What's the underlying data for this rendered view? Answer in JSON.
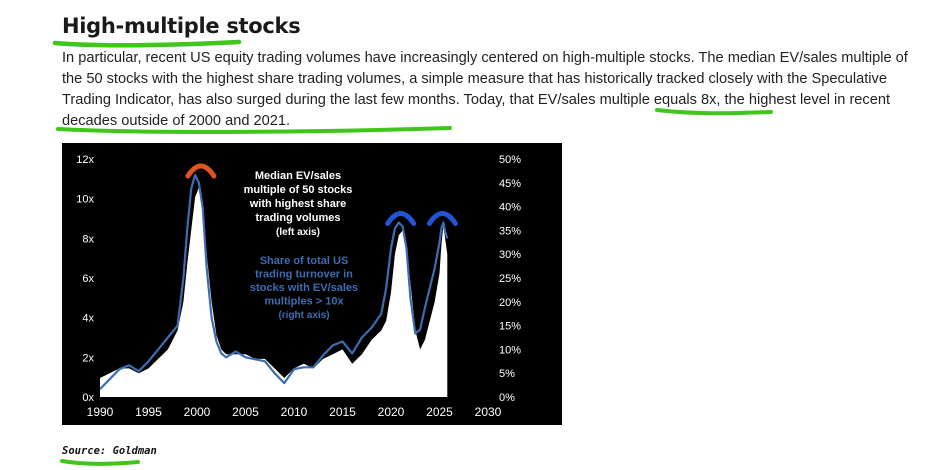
{
  "article": {
    "heading": "High-multiple stocks",
    "paragraph": {
      "p1": "In particular, recent US equity trading volumes have increasingly centered on high-multiple stocks. The median EV/sales multiple of the 50 stocks with the highest share trading volumes, a simple measure that has historically tracked closely with the Speculative Trading Indicator, has also surged during the last few months. Today, that ",
      "h1": "EV/sales multiple",
      "p2": " equals 8x, the ",
      "h2": "highest level in recent decades outside of 2000 and 2021",
      "p3": "."
    },
    "source": "Source: Goldman",
    "annotation_color": "#3ec71a"
  },
  "chart_data": {
    "type": "line+area",
    "background": "#000000",
    "x_ticks": [
      "1990",
      "1995",
      "2000",
      "2005",
      "2010",
      "2015",
      "2020",
      "2025",
      "2030"
    ],
    "xlim": [
      1990,
      2030
    ],
    "left_axis": {
      "ylim": [
        0,
        12
      ],
      "ticks": [
        "0x",
        "2x",
        "4x",
        "6x",
        "8x",
        "10x",
        "12x"
      ]
    },
    "right_axis": {
      "ylim": [
        0,
        50
      ],
      "ticks": [
        "0%",
        "5%",
        "10%",
        "15%",
        "20%",
        "25%",
        "30%",
        "35%",
        "40%",
        "45%",
        "50%"
      ]
    },
    "annotations": {
      "median_lines": [
        "Median EV/sales",
        "multiple of 50 stocks",
        "with highest share",
        "trading volumes",
        "(left axis)"
      ],
      "share_lines": [
        "Share of total US",
        "trading turnover in",
        "stocks with EV/sales",
        "multiples > 10x",
        "(right axis)"
      ]
    },
    "highlight_colors": {
      "peak_2000": "#e0531c",
      "peaks_recent": "#2155d6"
    },
    "series": [
      {
        "axis": "right",
        "style": "white-area",
        "x": [
          1990.0,
          1991.0,
          1992.0,
          1993.0,
          1994.0,
          1995.0,
          1996.0,
          1997.0,
          1998.0,
          1998.6,
          1999.0,
          1999.4,
          1999.8,
          2000.2,
          2000.6,
          2001.0,
          2001.5,
          2002.0,
          2002.5,
          2003.0,
          2004.0,
          2005.0,
          2006.0,
          2007.0,
          2008.0,
          2009.0,
          2010.0,
          2011.0,
          2012.0,
          2013.0,
          2014.0,
          2015.0,
          2016.0,
          2017.0,
          2018.0,
          2019.0,
          2019.5,
          2020.0,
          2020.4,
          2020.8,
          2021.2,
          2021.6,
          2022.0,
          2022.5,
          2023.0,
          2023.5,
          2024.0,
          2024.5,
          2025.0,
          2025.2,
          2025.4,
          2025.6,
          2025.8
        ],
        "values": [
          4.0,
          5.0,
          6.0,
          6.0,
          5.0,
          6.0,
          8.0,
          10.0,
          14.0,
          20.0,
          28.0,
          35.0,
          42.0,
          44.0,
          40.0,
          30.0,
          20.0,
          13.0,
          10.0,
          9.0,
          9.0,
          9.0,
          8.0,
          8.0,
          6.0,
          4.0,
          6.0,
          7.0,
          6.0,
          8.0,
          9.0,
          10.0,
          7.0,
          9.0,
          12.0,
          14.0,
          16.0,
          22.0,
          30.0,
          34.0,
          35.0,
          32.0,
          24.0,
          14.0,
          10.0,
          12.0,
          16.0,
          20.0,
          26.0,
          32.0,
          36.0,
          33.0,
          30.0
        ]
      },
      {
        "axis": "left",
        "style": "blue-line",
        "x": [
          1990.0,
          1991.0,
          1992.0,
          1993.0,
          1994.0,
          1995.0,
          1996.0,
          1997.0,
          1998.0,
          1998.6,
          1999.0,
          1999.4,
          1999.8,
          2000.2,
          2000.6,
          2001.0,
          2001.5,
          2002.0,
          2002.5,
          2003.0,
          2004.0,
          2005.0,
          2006.0,
          2007.0,
          2008.0,
          2009.0,
          2010.0,
          2011.0,
          2012.0,
          2013.0,
          2014.0,
          2015.0,
          2016.0,
          2017.0,
          2018.0,
          2019.0,
          2019.5,
          2020.0,
          2020.4,
          2020.8,
          2021.2,
          2021.6,
          2022.0,
          2022.5,
          2023.0,
          2023.5,
          2024.0,
          2024.5,
          2025.0,
          2025.2,
          2025.4,
          2025.6,
          2025.8
        ],
        "values": [
          0.4,
          0.9,
          1.4,
          1.6,
          1.3,
          1.8,
          2.4,
          3.0,
          3.6,
          6.0,
          8.5,
          10.5,
          11.2,
          10.8,
          9.5,
          6.5,
          4.0,
          2.8,
          2.2,
          2.0,
          2.3,
          2.0,
          1.9,
          1.8,
          1.2,
          0.7,
          1.4,
          1.5,
          1.5,
          2.1,
          2.6,
          2.8,
          2.2,
          3.0,
          3.5,
          4.2,
          5.5,
          7.5,
          8.5,
          8.8,
          8.6,
          7.5,
          5.0,
          3.2,
          3.4,
          4.5,
          5.5,
          6.5,
          7.8,
          8.5,
          8.8,
          8.3,
          8.0
        ]
      }
    ]
  }
}
